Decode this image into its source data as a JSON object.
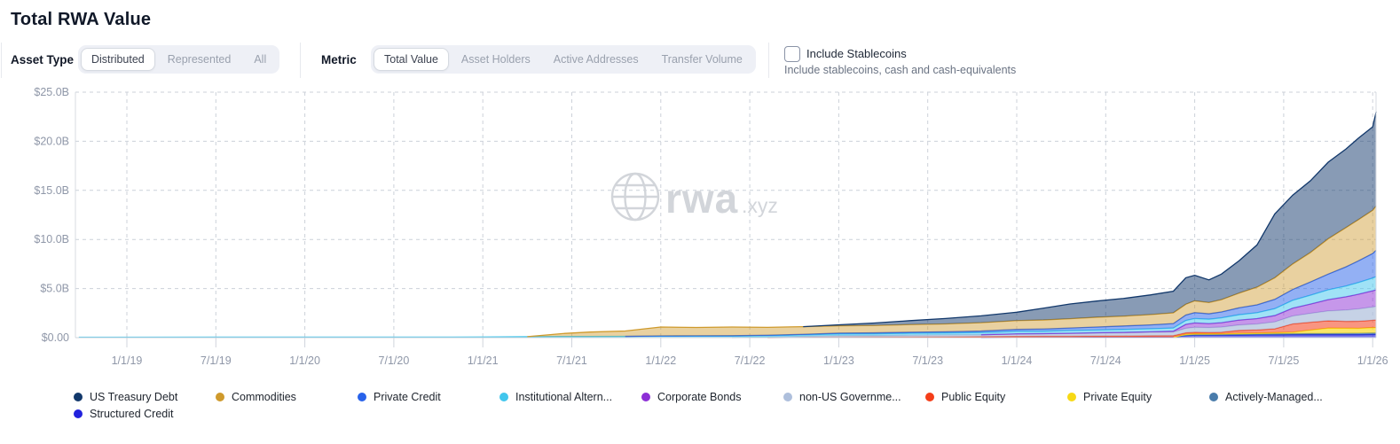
{
  "page": {
    "title": "Total RWA Value"
  },
  "controls": {
    "asset_type": {
      "label": "Asset Type",
      "options": [
        {
          "label": "Distributed",
          "selected": true
        },
        {
          "label": "Represented",
          "selected": false
        },
        {
          "label": "All",
          "selected": false
        }
      ]
    },
    "metric": {
      "label": "Metric",
      "options": [
        {
          "label": "Total Value",
          "selected": true
        },
        {
          "label": "Asset Holders",
          "selected": false
        },
        {
          "label": "Active Addresses",
          "selected": false
        },
        {
          "label": "Transfer Volume",
          "selected": false
        }
      ]
    },
    "stablecoins": {
      "label": "Include Stablecoins",
      "description": "Include stablecoins, cash and cash-equivalents",
      "checked": false
    }
  },
  "watermark": {
    "text": "rwa",
    "suffix": ".xyz",
    "color": "#d2d5da"
  },
  "chart_data": {
    "type": "area",
    "stacked": true,
    "title": "Total RWA Value",
    "unit": "USD billions",
    "grid": "dashed",
    "legend_position": "bottom",
    "ylim": [
      0,
      25
    ],
    "y_axis": {
      "ticks": [
        {
          "label": "$25.0B",
          "value": 25
        },
        {
          "label": "$20.0B",
          "value": 20
        },
        {
          "label": "$15.0B",
          "value": 15
        },
        {
          "label": "$10.0B",
          "value": 10
        },
        {
          "label": "$5.0B",
          "value": 5
        },
        {
          "label": "$0.00",
          "value": 0
        }
      ]
    },
    "x_axis": {
      "ticks": [
        {
          "label": "1/1/19",
          "t": 2019.0
        },
        {
          "label": "7/1/19",
          "t": 2019.5
        },
        {
          "label": "1/1/20",
          "t": 2020.0
        },
        {
          "label": "7/1/20",
          "t": 2020.5
        },
        {
          "label": "1/1/21",
          "t": 2021.0
        },
        {
          "label": "7/1/21",
          "t": 2021.5
        },
        {
          "label": "1/1/22",
          "t": 2022.0
        },
        {
          "label": "7/1/22",
          "t": 2022.5
        },
        {
          "label": "1/1/23",
          "t": 2023.0
        },
        {
          "label": "7/1/23",
          "t": 2023.5
        },
        {
          "label": "1/1/24",
          "t": 2024.0
        },
        {
          "label": "7/1/24",
          "t": 2024.5
        },
        {
          "label": "1/1/25",
          "t": 2025.0
        },
        {
          "label": "7/1/25",
          "t": 2025.5
        },
        {
          "label": "1/1/26",
          "t": 2026.0
        }
      ]
    },
    "x_years": [
      2018.73,
      2019.5,
      2020.0,
      2020.5,
      2021.0,
      2021.25,
      2021.45,
      2021.6,
      2021.8,
      2022.0,
      2022.2,
      2022.4,
      2022.6,
      2022.8,
      2023.0,
      2023.2,
      2023.4,
      2023.6,
      2023.8,
      2024.0,
      2024.15,
      2024.3,
      2024.45,
      2024.6,
      2024.75,
      2024.88,
      2024.95,
      2025.0,
      2025.08,
      2025.15,
      2025.25,
      2025.35,
      2025.45,
      2025.55,
      2025.65,
      2025.75,
      2025.85,
      2025.92,
      2026.0,
      2026.02
    ],
    "series": [
      {
        "name": "US Treasury Debt",
        "legend_label": "US Treasury Debt",
        "color": "#12386b",
        "fill_opacity": 0.5,
        "values": [
          0,
          0,
          0,
          0,
          0,
          0,
          0,
          0,
          0,
          0,
          0,
          0,
          0,
          0,
          0.1,
          0.25,
          0.4,
          0.55,
          0.7,
          0.85,
          1.2,
          1.5,
          1.65,
          1.8,
          2.0,
          2.2,
          2.7,
          2.6,
          2.3,
          2.6,
          3.3,
          4.3,
          6.5,
          7.0,
          7.3,
          7.8,
          8.0,
          8.3,
          8.5,
          9.6
        ]
      },
      {
        "name": "Commodities",
        "legend_label": "Commodities",
        "color": "#cf9a2c",
        "fill_opacity": 0.45,
        "values": [
          0,
          0,
          0,
          0,
          0,
          0,
          0.3,
          0.45,
          0.55,
          0.9,
          0.85,
          0.88,
          0.8,
          0.78,
          0.75,
          0.75,
          0.78,
          0.8,
          0.85,
          0.9,
          0.92,
          0.95,
          1.0,
          1.0,
          1.05,
          1.1,
          1.1,
          1.2,
          1.15,
          1.25,
          1.5,
          1.8,
          2.2,
          2.6,
          3.0,
          3.6,
          4.0,
          4.2,
          4.4,
          4.5
        ]
      },
      {
        "name": "Private Credit",
        "legend_label": "Private Credit",
        "color": "#2862ea",
        "fill_opacity": 0.5,
        "values": [
          0,
          0,
          0,
          0,
          0,
          0,
          0,
          0,
          0,
          0.03,
          0.04,
          0.05,
          0.05,
          0.06,
          0.08,
          0.1,
          0.1,
          0.12,
          0.15,
          0.2,
          0.22,
          0.25,
          0.3,
          0.35,
          0.4,
          0.45,
          0.55,
          0.6,
          0.55,
          0.6,
          0.7,
          0.8,
          0.95,
          1.1,
          1.35,
          1.6,
          1.95,
          2.2,
          2.5,
          2.7
        ]
      },
      {
        "name": "Institutional Alternative",
        "legend_label": "Institutional Altern...",
        "color": "#41c6ed",
        "fill_opacity": 0.5,
        "values": [
          0.04,
          0.05,
          0.05,
          0.05,
          0.06,
          0.1,
          0.12,
          0.12,
          0.13,
          0.15,
          0.15,
          0.15,
          0.15,
          0.15,
          0.18,
          0.18,
          0.2,
          0.2,
          0.22,
          0.25,
          0.25,
          0.28,
          0.28,
          0.3,
          0.3,
          0.32,
          0.4,
          0.45,
          0.45,
          0.5,
          0.55,
          0.6,
          0.7,
          0.8,
          0.9,
          1.0,
          1.1,
          1.2,
          1.3,
          1.35
        ]
      },
      {
        "name": "Corporate Bonds",
        "legend_label": "Corporate Bonds",
        "color": "#8d2fd6",
        "fill_opacity": 0.5,
        "values": [
          0,
          0,
          0,
          0,
          0,
          0,
          0,
          0,
          0,
          0,
          0,
          0,
          0,
          0,
          0,
          0,
          0,
          0,
          0,
          0.02,
          0.02,
          0.03,
          0.04,
          0.05,
          0.06,
          0.08,
          0.4,
          0.45,
          0.4,
          0.45,
          0.5,
          0.55,
          0.65,
          0.8,
          0.95,
          1.15,
          1.35,
          1.5,
          1.65,
          1.7
        ]
      },
      {
        "name": "non-US Government",
        "legend_label": "non-US Governme...",
        "color": "#aebfdc",
        "fill_opacity": 0.7,
        "values": [
          0,
          0,
          0,
          0,
          0,
          0,
          0,
          0,
          0,
          0,
          0,
          0,
          0.05,
          0.1,
          0.15,
          0.15,
          0.18,
          0.2,
          0.2,
          0.25,
          0.25,
          0.28,
          0.3,
          0.32,
          0.35,
          0.38,
          0.45,
          0.5,
          0.5,
          0.52,
          0.55,
          0.6,
          0.7,
          0.8,
          0.9,
          1.0,
          1.15,
          1.25,
          1.35,
          1.35
        ]
      },
      {
        "name": "Public Equity",
        "legend_label": "Public Equity",
        "color": "#f43e19",
        "fill_opacity": 0.55,
        "values": [
          0,
          0,
          0,
          0,
          0,
          0,
          0,
          0,
          0,
          0,
          0,
          0,
          0,
          0.03,
          0.05,
          0.06,
          0.07,
          0.08,
          0.1,
          0.1,
          0.12,
          0.12,
          0.13,
          0.14,
          0.15,
          0.15,
          0.15,
          0.15,
          0.14,
          0.15,
          0.3,
          0.33,
          0.4,
          0.85,
          0.8,
          0.75,
          0.7,
          0.72,
          0.75,
          0.8
        ]
      },
      {
        "name": "Private Equity",
        "legend_label": "Private Equity",
        "color": "#f7d915",
        "fill_opacity": 0.65,
        "values": [
          0,
          0,
          0,
          0,
          0,
          0,
          0,
          0,
          0,
          0,
          0,
          0,
          0,
          0,
          0,
          0,
          0,
          0,
          0,
          0,
          0,
          0,
          0,
          0,
          0,
          0,
          0.1,
          0.1,
          0.08,
          0.08,
          0.1,
          0.1,
          0.12,
          0.15,
          0.35,
          0.55,
          0.52,
          0.5,
          0.55,
          0.55
        ]
      },
      {
        "name": "Actively-Managed",
        "legend_label": "Actively-Managed...",
        "color": "#4a7cab",
        "fill_opacity": 0.55,
        "values": [
          0,
          0,
          0,
          0,
          0,
          0,
          0,
          0,
          0,
          0,
          0,
          0,
          0,
          0,
          0,
          0,
          0,
          0,
          0,
          0,
          0,
          0,
          0,
          0,
          0,
          0,
          0.05,
          0.05,
          0.06,
          0.06,
          0.08,
          0.08,
          0.1,
          0.1,
          0.12,
          0.12,
          0.14,
          0.15,
          0.15,
          0.15
        ]
      },
      {
        "name": "Structured Credit",
        "legend_label": "Structured Credit",
        "color": "#2222dd",
        "fill_opacity": 0.6,
        "values": [
          0,
          0,
          0,
          0,
          0,
          0,
          0,
          0,
          0,
          0,
          0,
          0,
          0,
          0,
          0,
          0,
          0,
          0,
          0,
          0.02,
          0.02,
          0.02,
          0.03,
          0.03,
          0.04,
          0.05,
          0.2,
          0.25,
          0.25,
          0.26,
          0.26,
          0.28,
          0.28,
          0.3,
          0.3,
          0.3,
          0.3,
          0.3,
          0.32,
          0.32
        ]
      }
    ]
  }
}
